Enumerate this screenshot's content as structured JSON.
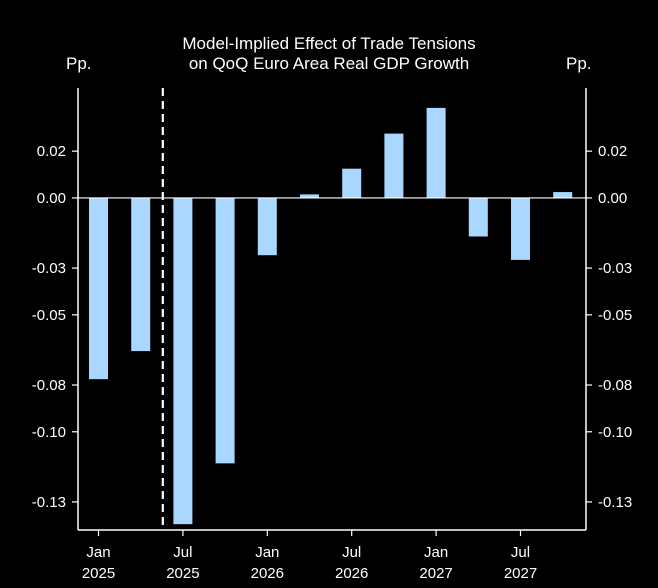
{
  "chart_data": {
    "type": "bar",
    "title_line1": "Model-Implied Effect of Trade Tensions",
    "title_line2": "on QoQ Euro Area Real GDP Growth",
    "left_unit": "Pp.",
    "right_unit": "Pp.",
    "ylim": [
      -0.142,
      0.047
    ],
    "y_ticks": [
      0.02,
      0.0,
      -0.03,
      -0.05,
      -0.08,
      -0.1,
      -0.13
    ],
    "y_tick_labels": [
      "0.02",
      "0.00",
      "-0.03",
      "-0.05",
      "-0.08",
      "-0.10",
      "-0.13"
    ],
    "categories": [
      "2025Q1",
      "2025Q2",
      "2025Q3",
      "2025Q4",
      "2026Q1",
      "2026Q2",
      "2026Q3",
      "2026Q4",
      "2027Q1",
      "2027Q2",
      "2027Q3",
      "2027Q4"
    ],
    "values": [
      -0.0775,
      -0.0655,
      -0.1395,
      -0.1135,
      -0.0245,
      0.0015,
      0.0125,
      0.0275,
      0.0385,
      -0.0165,
      -0.0265,
      0.0025
    ],
    "x_tick_labels": [
      {
        "month": "Jan",
        "year": "2025",
        "index": 0
      },
      {
        "month": "Jul",
        "year": "2025",
        "index": 2
      },
      {
        "month": "Jan",
        "year": "2026",
        "index": 4
      },
      {
        "month": "Jul",
        "year": "2026",
        "index": 6
      },
      {
        "month": "Jan",
        "year": "2027",
        "index": 8
      },
      {
        "month": "Jul",
        "year": "2027",
        "index": 10
      }
    ],
    "vline_after_index": 1,
    "bar_color": "#a9d7ff",
    "axis_color": "#ffffff",
    "background": "#000000",
    "grid": false
  }
}
